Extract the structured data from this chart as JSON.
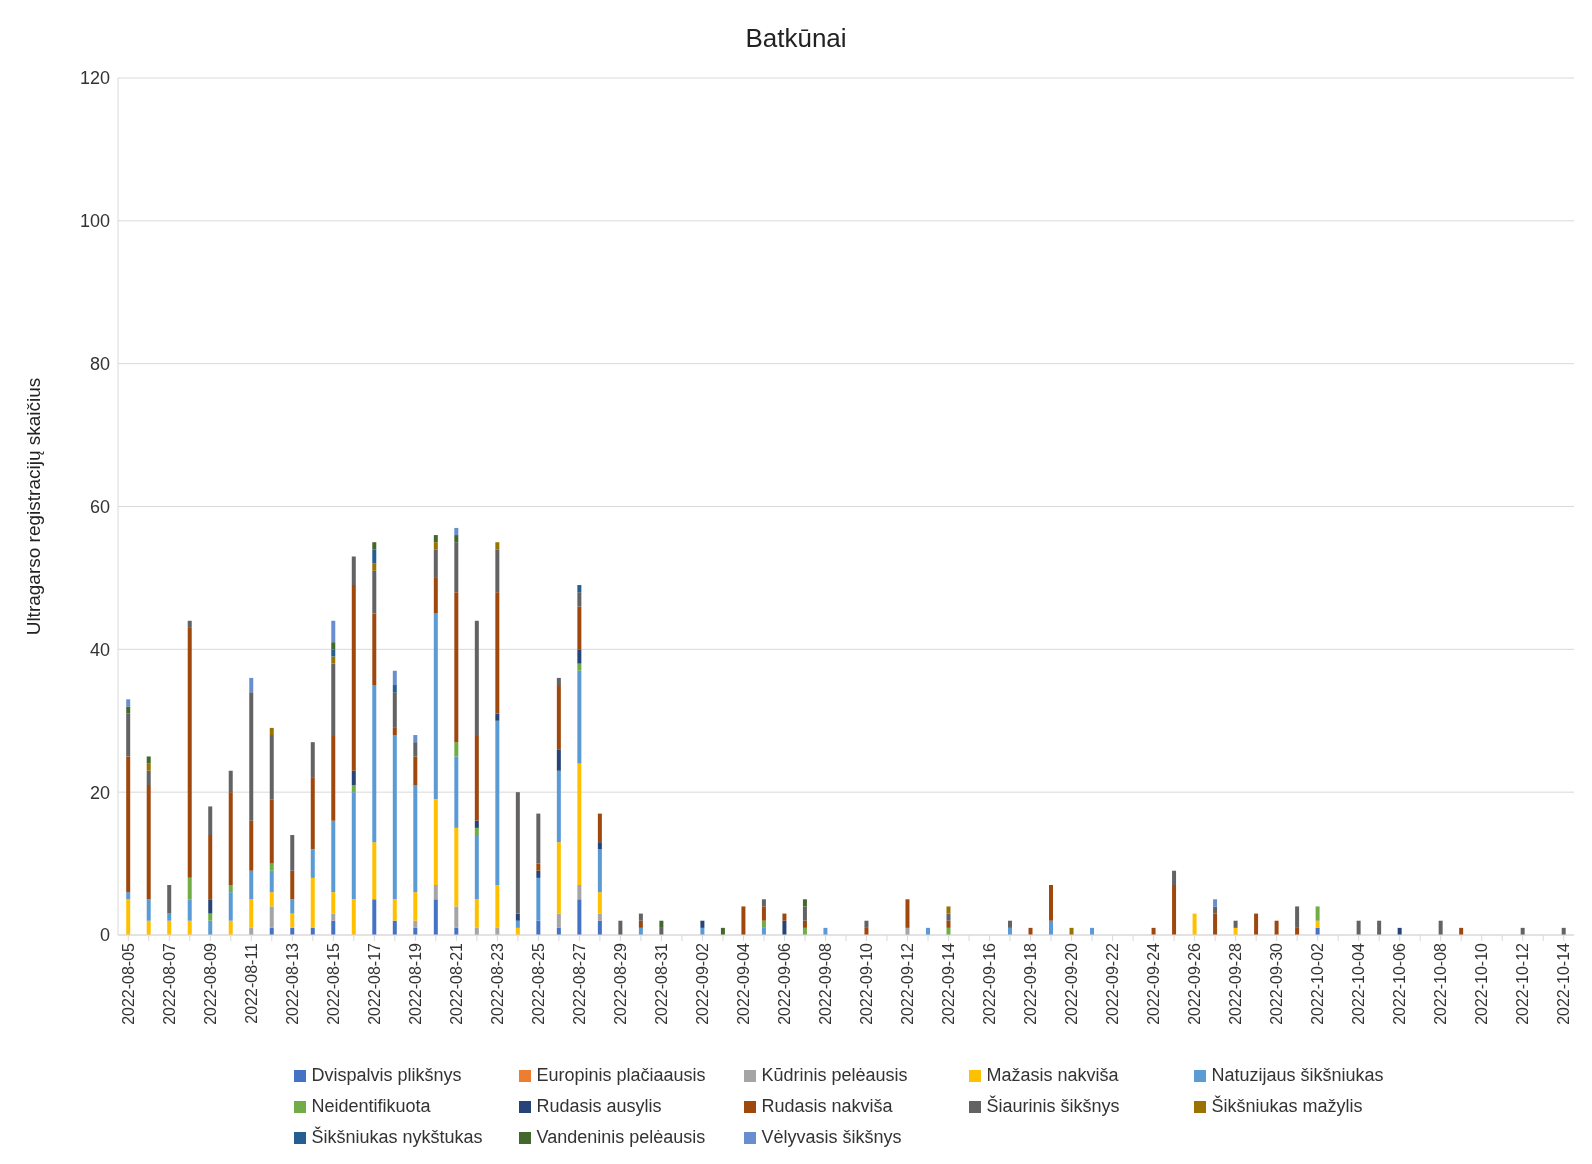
{
  "chart_data": {
    "type": "bar",
    "title": "Batkūnai",
    "ylabel": "Ultragarso registracijų skaičius",
    "categories": [
      "2022-08-05",
      null,
      "2022-08-07",
      null,
      "2022-08-09",
      null,
      "2022-08-11",
      null,
      "2022-08-13",
      null,
      "2022-08-15",
      null,
      "2022-08-17",
      null,
      "2022-08-19",
      null,
      "2022-08-21",
      null,
      "2022-08-23",
      null,
      "2022-08-25",
      null,
      "2022-08-27",
      null,
      "2022-08-29",
      null,
      "2022-08-31",
      null,
      "2022-09-02",
      null,
      "2022-09-04",
      null,
      "2022-09-06",
      null,
      "2022-09-08",
      null,
      "2022-09-10",
      null,
      "2022-09-12",
      null,
      "2022-09-14",
      null,
      "2022-09-16",
      null,
      "2022-09-18",
      null,
      "2022-09-20",
      null,
      "2022-09-22",
      null,
      "2022-09-24",
      null,
      "2022-09-26",
      null,
      "2022-09-28",
      null,
      "2022-09-30",
      null,
      "2022-10-02",
      null,
      "2022-10-04",
      null,
      "2022-10-06",
      null,
      "2022-10-08",
      null,
      "2022-10-10",
      null,
      "2022-10-12",
      null,
      "2022-10-14"
    ],
    "stacked": true,
    "ylim": [
      0,
      120
    ],
    "yticks": [
      0,
      20,
      40,
      60,
      80,
      100,
      120
    ],
    "grid": "y",
    "legend": "bottom",
    "series": [
      {
        "name": "Dvispalvis plikšnys",
        "color": "#4472c4",
        "values": [
          null,
          null,
          null,
          null,
          null,
          null,
          null,
          1,
          1,
          1,
          2,
          null,
          5,
          2,
          1,
          5,
          1,
          null,
          null,
          null,
          2,
          1,
          5,
          2,
          null,
          null,
          null,
          null,
          null,
          null,
          null,
          null,
          null,
          null,
          null,
          null,
          null,
          null,
          null,
          null,
          null,
          null,
          null,
          null,
          null,
          null,
          null,
          null,
          null,
          null,
          null,
          null,
          null,
          null,
          null,
          null,
          null,
          null,
          1,
          null,
          null,
          null,
          null,
          null,
          null,
          null,
          null,
          null,
          null,
          null,
          null
        ]
      },
      {
        "name": "Europinis plačiaausis",
        "color": "#ed7d31",
        "values": [
          null,
          null,
          null,
          null,
          null,
          null,
          null,
          null,
          null,
          null,
          null,
          null,
          null,
          null,
          null,
          null,
          null,
          null,
          null,
          null,
          null,
          null,
          null,
          null,
          null,
          null,
          null,
          null,
          null,
          null,
          null,
          null,
          null,
          null,
          null,
          null,
          null,
          null,
          null,
          null,
          null,
          null,
          null,
          null,
          null,
          null,
          null,
          null,
          null,
          null,
          null,
          null,
          null,
          null,
          null,
          null,
          null,
          null,
          null,
          null,
          null,
          null,
          null,
          null,
          null,
          null,
          null,
          null,
          null,
          null,
          null
        ]
      },
      {
        "name": "Kūdrinis pelėausis",
        "color": "#a5a5a5",
        "values": [
          null,
          null,
          null,
          null,
          null,
          null,
          1,
          3,
          null,
          null,
          1,
          null,
          null,
          null,
          1,
          2,
          3,
          1,
          1,
          null,
          null,
          2,
          2,
          1,
          null,
          null,
          null,
          null,
          null,
          null,
          null,
          null,
          null,
          null,
          null,
          null,
          null,
          null,
          1,
          null,
          null,
          null,
          null,
          null,
          null,
          null,
          null,
          null,
          null,
          null,
          null,
          null,
          null,
          null,
          null,
          null,
          null,
          null,
          null,
          null,
          null,
          null,
          null,
          null,
          null,
          null,
          null,
          null,
          null,
          null,
          null
        ]
      },
      {
        "name": "Mažasis nakviša",
        "color": "#ffc000",
        "values": [
          5,
          2,
          2,
          2,
          null,
          2,
          4,
          2,
          2,
          7,
          3,
          5,
          8,
          3,
          4,
          12,
          11,
          4,
          6,
          1,
          null,
          10,
          17,
          3,
          null,
          null,
          null,
          null,
          null,
          null,
          null,
          null,
          null,
          null,
          null,
          null,
          null,
          null,
          null,
          null,
          null,
          null,
          null,
          null,
          null,
          null,
          null,
          null,
          null,
          null,
          null,
          null,
          3,
          null,
          1,
          null,
          null,
          null,
          1,
          null,
          null,
          null,
          null,
          null,
          null,
          null,
          null,
          null,
          null,
          null,
          null
        ]
      },
      {
        "name": "Natuzijaus šikšniukas",
        "color": "#5b9bd5",
        "values": [
          1,
          3,
          1,
          3,
          2,
          4,
          4,
          3,
          2,
          4,
          10,
          15,
          22,
          23,
          15,
          26,
          10,
          9,
          23,
          1,
          6,
          10,
          13,
          6,
          null,
          1,
          null,
          null,
          1,
          null,
          null,
          1,
          null,
          null,
          1,
          null,
          null,
          null,
          null,
          1,
          null,
          null,
          null,
          1,
          null,
          2,
          null,
          1,
          null,
          null,
          null,
          null,
          null,
          null,
          null,
          null,
          null,
          null,
          null,
          null,
          null,
          null,
          null,
          null,
          null,
          null,
          null,
          null,
          null,
          null,
          null
        ]
      },
      {
        "name": "Neidentifikuota",
        "color": "#70ad47",
        "values": [
          null,
          null,
          null,
          3,
          1,
          1,
          null,
          1,
          null,
          null,
          null,
          1,
          null,
          null,
          null,
          null,
          2,
          1,
          null,
          null,
          null,
          null,
          1,
          null,
          null,
          null,
          null,
          null,
          null,
          null,
          null,
          1,
          null,
          1,
          null,
          null,
          null,
          null,
          null,
          null,
          1,
          null,
          null,
          null,
          null,
          null,
          null,
          null,
          null,
          null,
          null,
          null,
          null,
          null,
          null,
          null,
          null,
          null,
          2,
          null,
          null,
          null,
          null,
          null,
          null,
          null,
          null,
          null,
          null,
          null,
          null
        ]
      },
      {
        "name": "Rudasis ausylis",
        "color": "#264478",
        "values": [
          null,
          null,
          null,
          null,
          2,
          null,
          null,
          null,
          null,
          null,
          null,
          2,
          null,
          null,
          null,
          null,
          null,
          1,
          1,
          1,
          1,
          3,
          2,
          1,
          null,
          null,
          null,
          null,
          1,
          null,
          null,
          null,
          2,
          null,
          null,
          null,
          null,
          null,
          null,
          null,
          null,
          null,
          null,
          null,
          null,
          null,
          null,
          null,
          null,
          null,
          null,
          null,
          null,
          null,
          null,
          null,
          null,
          null,
          null,
          null,
          null,
          null,
          1,
          null,
          null,
          null,
          null,
          null,
          null,
          null,
          null
        ]
      },
      {
        "name": "Rudasis nakviša",
        "color": "#9e480e",
        "values": [
          19,
          16,
          null,
          35,
          9,
          13,
          7,
          9,
          4,
          10,
          12,
          26,
          10,
          1,
          4,
          5,
          21,
          12,
          17,
          null,
          1,
          9,
          6,
          4,
          null,
          1,
          null,
          null,
          null,
          null,
          4,
          2,
          1,
          1,
          null,
          null,
          1,
          null,
          4,
          null,
          1,
          null,
          null,
          null,
          1,
          5,
          null,
          null,
          null,
          null,
          1,
          7,
          null,
          3,
          null,
          3,
          2,
          1,
          null,
          null,
          null,
          null,
          null,
          null,
          null,
          1,
          null,
          null,
          null,
          null,
          null
        ]
      },
      {
        "name": "Šiaurinis šikšnys",
        "color": "#636363",
        "values": [
          6,
          2,
          4,
          1,
          4,
          3,
          18,
          9,
          5,
          5,
          10,
          4,
          6,
          5,
          2,
          4,
          7,
          16,
          6,
          17,
          7,
          1,
          2,
          null,
          2,
          1,
          1,
          null,
          null,
          null,
          null,
          1,
          null,
          2,
          null,
          null,
          1,
          null,
          null,
          null,
          1,
          null,
          null,
          1,
          null,
          null,
          null,
          null,
          null,
          null,
          null,
          2,
          null,
          1,
          1,
          null,
          null,
          3,
          null,
          null,
          2,
          2,
          null,
          null,
          2,
          null,
          null,
          null,
          1,
          null,
          1
        ]
      },
      {
        "name": "Šikšniukas mažylis",
        "color": "#997300",
        "values": [
          null,
          1,
          null,
          null,
          null,
          null,
          null,
          1,
          null,
          null,
          1,
          null,
          1,
          null,
          null,
          1,
          null,
          null,
          1,
          null,
          null,
          null,
          null,
          null,
          null,
          null,
          null,
          null,
          null,
          null,
          null,
          null,
          null,
          null,
          null,
          null,
          null,
          null,
          null,
          null,
          1,
          null,
          null,
          null,
          null,
          null,
          1,
          null,
          null,
          null,
          null,
          null,
          null,
          null,
          null,
          null,
          null,
          null,
          null,
          null,
          null,
          null,
          null,
          null,
          null,
          null,
          null,
          null,
          null,
          null,
          null
        ]
      },
      {
        "name": "Šikšniukas nykštukas",
        "color": "#255e91",
        "values": [
          null,
          null,
          null,
          null,
          null,
          null,
          null,
          null,
          null,
          null,
          1,
          null,
          2,
          1,
          null,
          null,
          null,
          null,
          null,
          null,
          null,
          null,
          1,
          null,
          null,
          null,
          null,
          null,
          null,
          null,
          null,
          null,
          null,
          null,
          null,
          null,
          null,
          null,
          null,
          null,
          null,
          null,
          null,
          null,
          null,
          null,
          null,
          null,
          null,
          null,
          null,
          null,
          null,
          null,
          null,
          null,
          null,
          null,
          null,
          null,
          null,
          null,
          null,
          null,
          null,
          null,
          null,
          null,
          null,
          null,
          null
        ]
      },
      {
        "name": "Vandeninis pelėausis",
        "color": "#43682b",
        "values": [
          1,
          1,
          null,
          null,
          null,
          null,
          null,
          null,
          null,
          null,
          1,
          null,
          1,
          null,
          null,
          1,
          1,
          null,
          null,
          null,
          null,
          null,
          null,
          null,
          null,
          null,
          1,
          null,
          null,
          1,
          null,
          null,
          null,
          1,
          null,
          null,
          null,
          null,
          null,
          null,
          null,
          null,
          null,
          null,
          null,
          null,
          null,
          null,
          null,
          null,
          null,
          null,
          null,
          null,
          null,
          null,
          null,
          null,
          null,
          null,
          null,
          null,
          null,
          null,
          null,
          null,
          null,
          null,
          null,
          null,
          null
        ]
      },
      {
        "name": "Vėlyvasis šikšnys",
        "color": "#698ed0",
        "values": [
          1,
          null,
          null,
          null,
          null,
          null,
          2,
          null,
          null,
          null,
          3,
          null,
          null,
          2,
          1,
          null,
          1,
          null,
          null,
          null,
          null,
          null,
          null,
          null,
          null,
          null,
          null,
          null,
          null,
          null,
          null,
          null,
          null,
          null,
          null,
          null,
          null,
          null,
          null,
          null,
          null,
          null,
          null,
          null,
          null,
          null,
          null,
          null,
          null,
          null,
          null,
          null,
          null,
          1,
          null,
          null,
          null,
          null,
          null,
          null,
          null,
          null,
          null,
          null,
          null,
          null,
          null,
          null,
          null,
          null,
          null
        ]
      }
    ]
  }
}
